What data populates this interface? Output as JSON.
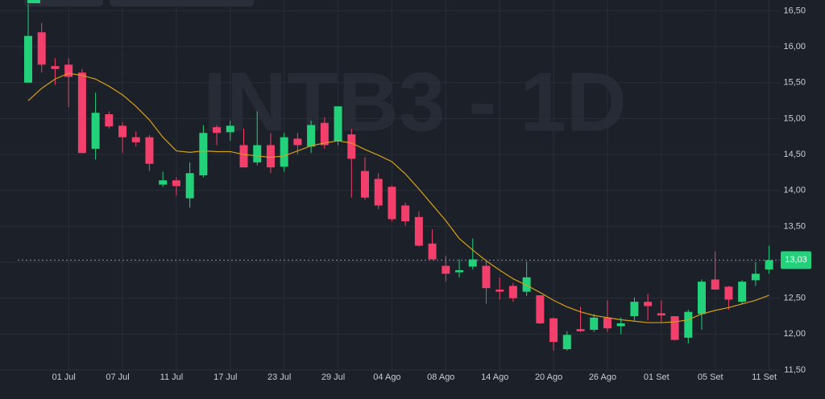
{
  "chart_data": {
    "type": "candlestick",
    "watermark": "INTB3 - 1D",
    "categories": [
      null,
      null,
      null,
      "01 Jul",
      null,
      null,
      null,
      "07 Jul",
      null,
      null,
      null,
      "11 Jul",
      null,
      null,
      null,
      "17 Jul",
      null,
      null,
      null,
      "23 Jul",
      null,
      null,
      null,
      "29 Jul",
      null,
      null,
      null,
      "04 Ago",
      null,
      null,
      null,
      "08 Ago",
      null,
      null,
      null,
      "14 Ago",
      null,
      null,
      null,
      "20 Ago",
      null,
      null,
      null,
      "26 Ago",
      null,
      null,
      null,
      "01 Set",
      null,
      null,
      null,
      "05 Set",
      null,
      null,
      null,
      "11 Set"
    ],
    "open": [
      15.5,
      16.2,
      15.73,
      15.75,
      15.64,
      14.58,
      15.06,
      14.9,
      14.74,
      14.74,
      14.08,
      14.14,
      13.89,
      14.21,
      14.88,
      14.81,
      14.63,
      14.39,
      14.63,
      14.33,
      14.72,
      14.61,
      14.94,
      14.69,
      14.78,
      14.27,
      14.16,
      14.05,
      13.79,
      13.63,
      13.26,
      12.95,
      12.86,
      12.94,
      12.95,
      12.62,
      12.67,
      12.59,
      12.54,
      12.22,
      11.79,
      12.07,
      12.06,
      12.23,
      12.11,
      12.25,
      12.45,
      12.29,
      12.25,
      11.95,
      12.28,
      12.76,
      12.66,
      12.45,
      12.75,
      12.9
    ],
    "high": [
      16.59,
      16.33,
      15.84,
      15.84,
      15.69,
      15.36,
      15.1,
      14.95,
      14.82,
      14.77,
      14.26,
      14.18,
      14.39,
      14.91,
      14.91,
      14.97,
      14.86,
      15.1,
      14.8,
      14.8,
      14.8,
      14.97,
      15.02,
      15.17,
      14.86,
      14.46,
      14.24,
      14.07,
      13.83,
      13.71,
      13.46,
      13.09,
      13.04,
      13.33,
      13.04,
      12.79,
      12.71,
      13.01,
      12.54,
      12.23,
      12.04,
      12.38,
      12.28,
      12.47,
      12.23,
      12.51,
      12.56,
      12.47,
      12.25,
      12.34,
      12.76,
      13.15,
      12.67,
      12.75,
      13.0,
      13.23
    ],
    "low": [
      15.5,
      15.64,
      15.47,
      15.16,
      14.52,
      14.43,
      14.86,
      14.52,
      14.61,
      14.27,
      14.05,
      13.93,
      13.76,
      14.18,
      14.63,
      14.69,
      14.32,
      14.35,
      14.24,
      14.26,
      14.5,
      14.52,
      14.58,
      14.63,
      13.9,
      13.87,
      13.74,
      13.57,
      13.51,
      13.22,
      13.04,
      12.73,
      12.79,
      12.9,
      12.42,
      12.48,
      12.45,
      12.53,
      12.14,
      11.77,
      11.77,
      12.03,
      12.03,
      12.03,
      12.0,
      12.19,
      12.19,
      12.17,
      11.91,
      11.87,
      12.06,
      12.62,
      12.34,
      12.42,
      12.67,
      12.84
    ],
    "close": [
      16.15,
      15.75,
      15.69,
      15.58,
      14.52,
      15.08,
      14.89,
      14.74,
      14.67,
      14.37,
      14.14,
      14.06,
      14.24,
      14.8,
      14.8,
      14.9,
      14.32,
      14.63,
      14.32,
      14.74,
      14.63,
      14.91,
      14.63,
      15.17,
      14.44,
      13.9,
      13.79,
      13.6,
      13.57,
      13.23,
      13.04,
      12.84,
      12.89,
      13.04,
      12.64,
      12.59,
      12.5,
      12.79,
      12.15,
      11.89,
      11.99,
      12.04,
      12.23,
      12.08,
      12.15,
      12.45,
      12.39,
      12.26,
      11.92,
      12.31,
      12.73,
      12.62,
      12.48,
      12.73,
      12.84,
      13.03
    ],
    "moving_average": {
      "color": "#d4a017",
      "values": [
        15.25,
        15.42,
        15.55,
        15.63,
        15.6,
        15.55,
        15.45,
        15.33,
        15.17,
        14.98,
        14.74,
        14.55,
        14.53,
        14.55,
        14.54,
        14.54,
        14.5,
        14.48,
        14.46,
        14.48,
        14.55,
        14.62,
        14.66,
        14.69,
        14.66,
        14.57,
        14.49,
        14.4,
        14.23,
        14.02,
        13.8,
        13.58,
        13.33,
        13.17,
        13.02,
        12.89,
        12.77,
        12.68,
        12.58,
        12.47,
        12.38,
        12.31,
        12.26,
        12.23,
        12.2,
        12.18,
        12.16,
        12.16,
        12.17,
        12.2,
        12.28,
        12.33,
        12.37,
        12.42,
        12.47,
        12.54
      ]
    },
    "up_color": "#22d17a",
    "down_color": "#f23f6b",
    "last_price": {
      "value": 13.03,
      "label": "13,03"
    },
    "ylim": [
      11.5,
      16.65
    ],
    "yticks": [
      {
        "value": 11.5,
        "label": "11,50"
      },
      {
        "value": 12,
        "label": "12,00"
      },
      {
        "value": 12.5,
        "label": "12,50"
      },
      {
        "value": 13,
        "label": "13,00"
      },
      {
        "value": 13.5,
        "label": "13,50"
      },
      {
        "value": 14,
        "label": "14,00"
      },
      {
        "value": 14.5,
        "label": "14,50"
      },
      {
        "value": 15,
        "label": "15,00"
      },
      {
        "value": 15.5,
        "label": "15,50"
      },
      {
        "value": 16,
        "label": "16,00"
      },
      {
        "value": 16.5,
        "label": "16,50"
      }
    ],
    "grid": true
  }
}
